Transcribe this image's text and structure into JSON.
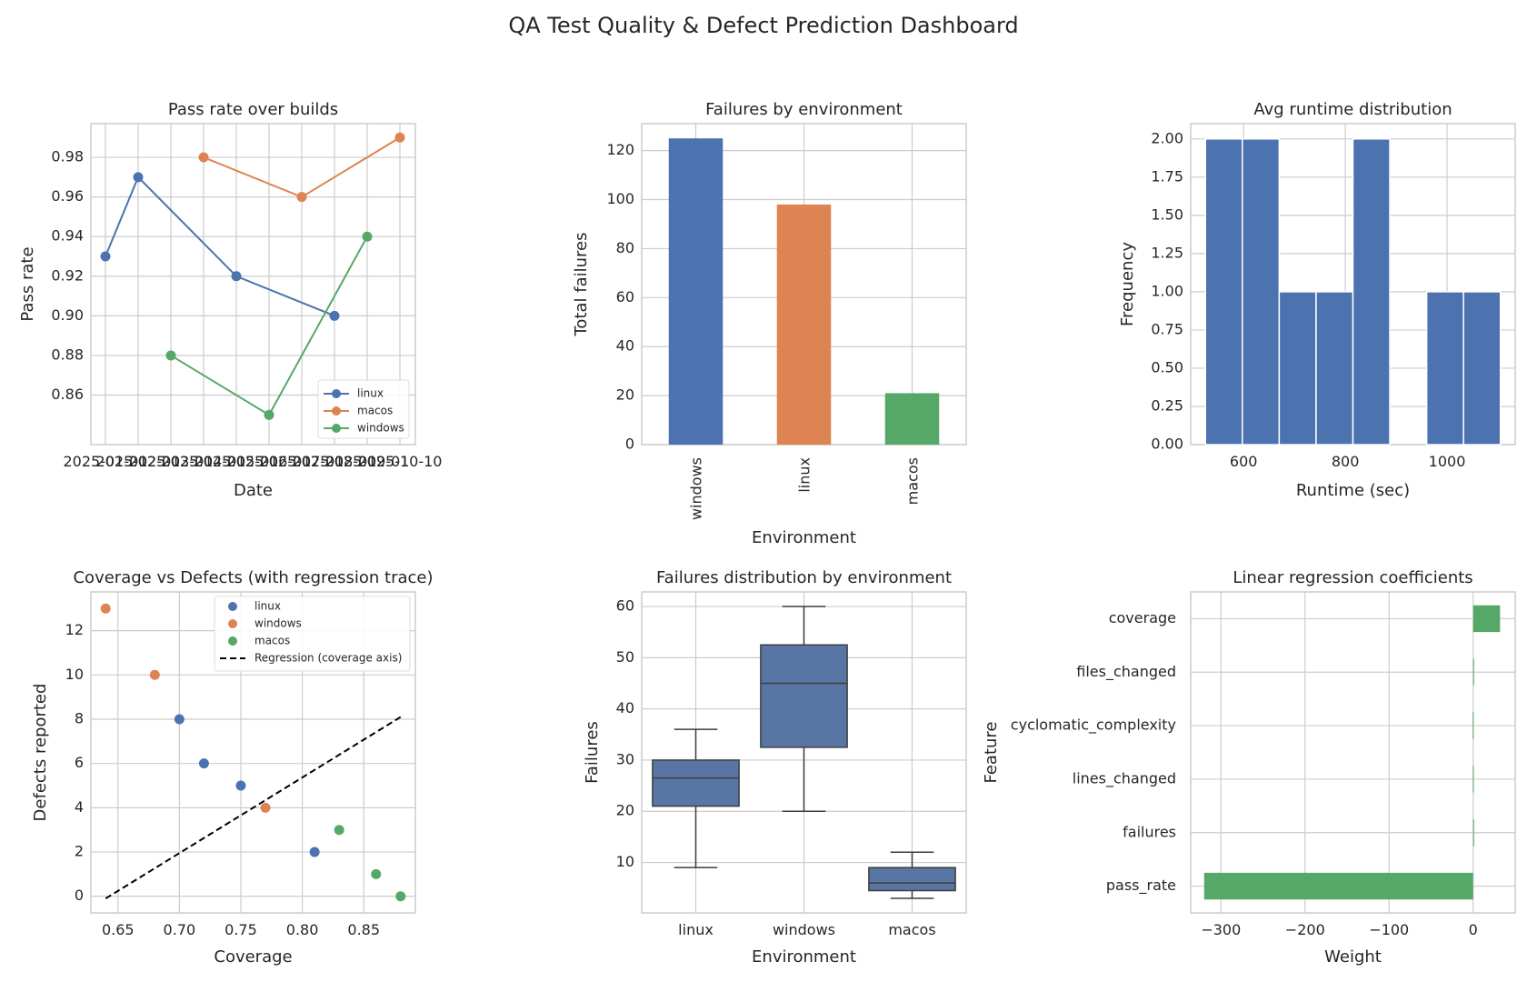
{
  "suptitle": "QA Test Quality & Defect Prediction Dashboard",
  "colors": {
    "blue": "#4c72b0",
    "orange": "#dd8452",
    "green": "#55a868",
    "grid": "#cccccc",
    "box": "#5975a4",
    "text": "#262626"
  },
  "chart_data": [
    {
      "type": "line",
      "title": "Pass rate over builds",
      "xlabel": "Date",
      "ylabel": "Pass rate",
      "x_tick_labels": [
        "2025-01-01",
        "2025-02-01",
        "2025-03-01",
        "2025-04-01",
        "2025-05-01",
        "2025-06-01",
        "2025-07-01",
        "2025-08-01",
        "2025-09-01",
        "2025-10-10"
      ],
      "ylim": [
        0.835,
        0.997
      ],
      "yticks": [
        "0.86",
        "0.88",
        "0.90",
        "0.92",
        "0.94",
        "0.96",
        "0.98"
      ],
      "grid": true,
      "legend": "lower-right",
      "series": [
        {
          "name": "linux",
          "color": "#4c72b0",
          "points": [
            {
              "x": "2025-01-01",
              "y": 0.93
            },
            {
              "x": "2025-02-01",
              "y": 0.97
            },
            {
              "x": "2025-05-01",
              "y": 0.92
            },
            {
              "x": "2025-08-01",
              "y": 0.9
            }
          ]
        },
        {
          "name": "macos",
          "color": "#dd8452",
          "points": [
            {
              "x": "2025-04-01",
              "y": 0.98
            },
            {
              "x": "2025-07-01",
              "y": 0.96
            },
            {
              "x": "2025-10-10",
              "y": 0.99
            }
          ]
        },
        {
          "name": "windows",
          "color": "#55a868",
          "points": [
            {
              "x": "2025-03-01",
              "y": 0.88
            },
            {
              "x": "2025-06-01",
              "y": 0.85
            },
            {
              "x": "2025-09-01",
              "y": 0.94
            }
          ]
        }
      ]
    },
    {
      "type": "bar",
      "title": "Failures by environment",
      "xlabel": "Environment",
      "ylabel": "Total failures",
      "categories": [
        "windows",
        "linux",
        "macos"
      ],
      "values": [
        125,
        98,
        21
      ],
      "colors": [
        "#4c72b0",
        "#dd8452",
        "#55a868"
      ],
      "ylim": [
        0,
        131
      ],
      "yticks": [
        "0",
        "20",
        "40",
        "60",
        "80",
        "100",
        "120"
      ],
      "grid": true
    },
    {
      "type": "histogram",
      "title": "Avg runtime distribution",
      "xlabel": "Runtime (sec)",
      "ylabel": "Frequency",
      "bins": [
        {
          "from": 525,
          "to": 597.5,
          "count": 2
        },
        {
          "from": 597.5,
          "to": 670,
          "count": 2
        },
        {
          "from": 670,
          "to": 742.5,
          "count": 1
        },
        {
          "from": 742.5,
          "to": 815,
          "count": 1
        },
        {
          "from": 815,
          "to": 887.5,
          "count": 2
        },
        {
          "from": 887.5,
          "to": 960,
          "count": 0
        },
        {
          "from": 960,
          "to": 1032.5,
          "count": 1
        },
        {
          "from": 1032.5,
          "to": 1105,
          "count": 1
        }
      ],
      "xlim": [
        496,
        1134
      ],
      "ylim": [
        0,
        2.1
      ],
      "xticks": [
        "600",
        "800",
        "1000"
      ],
      "yticks": [
        "0.00",
        "0.25",
        "0.50",
        "0.75",
        "1.00",
        "1.25",
        "1.50",
        "1.75",
        "2.00"
      ],
      "color": "#4c72b0",
      "grid": true
    },
    {
      "type": "scatter",
      "title": "Coverage vs Defects (with regression trace)",
      "xlabel": "Coverage",
      "ylabel": "Defects reported",
      "xlim": [
        0.628,
        0.892
      ],
      "ylim": [
        -0.75,
        13.75
      ],
      "xticks": [
        "0.65",
        "0.70",
        "0.75",
        "0.80",
        "0.85"
      ],
      "yticks": [
        "0",
        "2",
        "4",
        "6",
        "8",
        "10",
        "12"
      ],
      "legend": "upper-right",
      "grid": true,
      "series": [
        {
          "name": "linux",
          "color": "#4c72b0",
          "points": [
            {
              "x": 0.7,
              "y": 8
            },
            {
              "x": 0.72,
              "y": 6
            },
            {
              "x": 0.75,
              "y": 5
            },
            {
              "x": 0.81,
              "y": 2
            }
          ]
        },
        {
          "name": "windows",
          "color": "#dd8452",
          "points": [
            {
              "x": 0.64,
              "y": 13
            },
            {
              "x": 0.68,
              "y": 10
            },
            {
              "x": 0.77,
              "y": 4
            }
          ]
        },
        {
          "name": "macos",
          "color": "#55a868",
          "points": [
            {
              "x": 0.83,
              "y": 3
            },
            {
              "x": 0.86,
              "y": 1
            },
            {
              "x": 0.88,
              "y": 0
            }
          ]
        }
      ],
      "regression": {
        "name": "Regression (coverage axis)",
        "from": {
          "x": 0.64,
          "y": -0.1
        },
        "to": {
          "x": 0.88,
          "y": 8.1
        }
      }
    },
    {
      "type": "box",
      "title": "Failures distribution by environment",
      "xlabel": "Environment",
      "ylabel": "Failures",
      "categories": [
        "linux",
        "windows",
        "macos"
      ],
      "boxes": [
        {
          "min": 9,
          "q1": 21,
          "median": 26.5,
          "q3": 30,
          "max": 36
        },
        {
          "min": 20,
          "q1": 32.5,
          "median": 45,
          "q3": 52.5,
          "max": 60
        },
        {
          "min": 3,
          "q1": 4.5,
          "median": 6,
          "q3": 9,
          "max": 12
        }
      ],
      "ylim": [
        0.15,
        62.85
      ],
      "yticks": [
        "10",
        "20",
        "30",
        "40",
        "50",
        "60"
      ],
      "color": "#5975a4",
      "grid": true
    },
    {
      "type": "barh",
      "title": "Linear regression coefficients",
      "xlabel": "Weight",
      "ylabel": "Feature",
      "categories": [
        "coverage",
        "files_changed",
        "cyclomatic_complexity",
        "lines_changed",
        "failures",
        "pass_rate"
      ],
      "values": [
        32,
        0.5,
        -0.5,
        -0.3,
        0.8,
        -320
      ],
      "xlim": [
        -336,
        50
      ],
      "xticks": [
        "−300",
        "−200",
        "−100",
        "0"
      ],
      "color": "#55a868",
      "grid": true
    }
  ]
}
